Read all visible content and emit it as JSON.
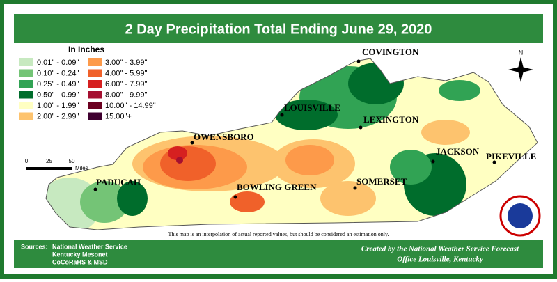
{
  "title": "2 Day Precipitation Total Ending June 29, 2020",
  "legend": {
    "title": "In Inches",
    "items": [
      {
        "label": "0.01\" - 0.09\"",
        "color": "#c7e9c0"
      },
      {
        "label": "0.10\" - 0.24\"",
        "color": "#74c476"
      },
      {
        "label": "0.25\" - 0.49\"",
        "color": "#31a354"
      },
      {
        "label": "0.50\" - 0.99\"",
        "color": "#006d2c"
      },
      {
        "label": "1.00\" - 1.99\"",
        "color": "#ffffc2"
      },
      {
        "label": "2.00\" - 2.99\"",
        "color": "#fdc36e"
      },
      {
        "label": "3.00\" - 3.99\"",
        "color": "#fd9a4a"
      },
      {
        "label": "4.00\" - 5.99\"",
        "color": "#f0612a"
      },
      {
        "label": "6.00\" - 7.99\"",
        "color": "#d62020"
      },
      {
        "label": "8.00\" - 9.99\"",
        "color": "#a50f30"
      },
      {
        "label": "10.00\" - 14.99\"",
        "color": "#6b0020"
      },
      {
        "label": "15.00\"+",
        "color": "#3f0030"
      }
    ]
  },
  "cities": [
    "COVINGTON",
    "LOUISVILLE",
    "LEXINGTON",
    "OWENSBORO",
    "JACKSON",
    "PIKEVILLE",
    "PADUCAH",
    "BOWLING GREEN",
    "SOMERSET"
  ],
  "scale": {
    "ticks": [
      0,
      25,
      50
    ],
    "unit": "Miles"
  },
  "compass": "N",
  "note": "This map is an interpolation of actual reported values, but should be considered an estimation only.",
  "sources": {
    "label": "Sources:",
    "items": [
      "National Weather Service",
      "Kentucky Mesonet",
      "CoCoRaHS & MSD"
    ]
  },
  "credit": [
    "Created by the National Weather Service Forecast",
    "Office Louisville, Kentucky"
  ]
}
